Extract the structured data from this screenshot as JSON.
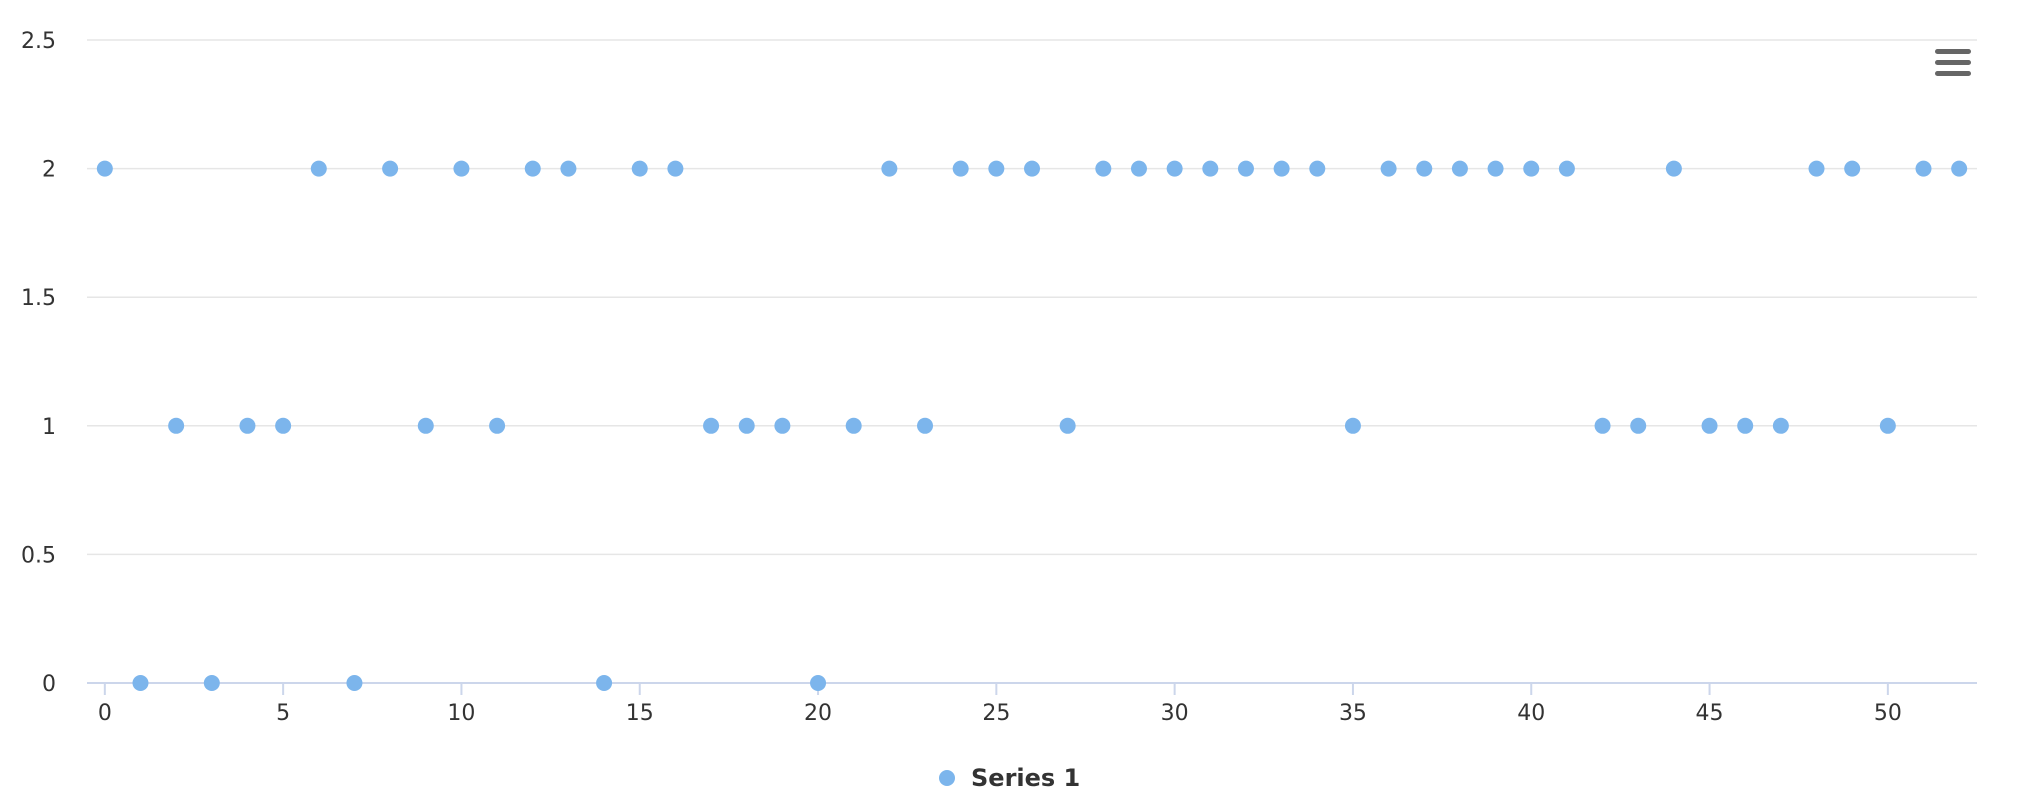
{
  "chart_data": {
    "type": "scatter",
    "title": "",
    "xlabel": "",
    "ylabel": "",
    "xlim": [
      -0.5,
      52.5
    ],
    "ylim": [
      0,
      2.5
    ],
    "x_ticks": [
      "0",
      "5",
      "10",
      "15",
      "20",
      "25",
      "30",
      "35",
      "40",
      "45",
      "50"
    ],
    "y_ticks": [
      "0",
      "0.5",
      "1",
      "1.5",
      "2",
      "2.5"
    ],
    "grid": true,
    "legend_position": "bottom-center",
    "series": [
      {
        "name": "Series 1",
        "color": "#7cb5ec",
        "x": [
          0,
          1,
          2,
          3,
          4,
          5,
          6,
          7,
          8,
          9,
          10,
          11,
          12,
          13,
          14,
          15,
          16,
          17,
          18,
          19,
          20,
          21,
          22,
          23,
          24,
          25,
          26,
          27,
          28,
          29,
          30,
          31,
          32,
          33,
          34,
          35,
          36,
          37,
          38,
          39,
          40,
          41,
          42,
          43,
          44,
          45,
          46,
          47,
          48,
          49,
          50,
          51,
          52
        ],
        "y": [
          2,
          0,
          1,
          0,
          1,
          1,
          2,
          0,
          2,
          1,
          2,
          1,
          2,
          2,
          0,
          2,
          2,
          1,
          1,
          1,
          0,
          1,
          2,
          1,
          2,
          2,
          2,
          1,
          2,
          2,
          2,
          2,
          2,
          2,
          2,
          1,
          2,
          2,
          2,
          2,
          2,
          2,
          1,
          1,
          2,
          1,
          1,
          1,
          2,
          2,
          1,
          2,
          2
        ]
      }
    ]
  },
  "toolbar": {
    "menu_icon": "hamburger-menu-icon"
  },
  "colors": {
    "grid": "#e6e6e6",
    "axis": "#ccd6eb",
    "text": "#333333",
    "menu": "#666666"
  }
}
